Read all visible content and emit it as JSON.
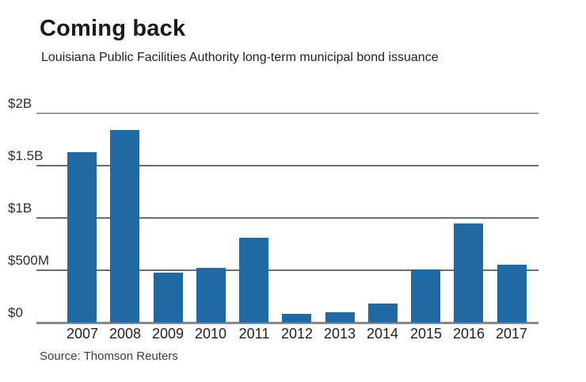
{
  "header": {
    "title": "Coming back",
    "subtitle": "Louisiana Public Facilities Authority long-term municipal bond issuance"
  },
  "footer": {
    "source": "Source: Thomson Reuters"
  },
  "colors": {
    "background": "#ffffff",
    "bar": "#1f6aa5",
    "gridline_outer": "#9a9a9a",
    "gridline_inner": "#6e6e6e",
    "baseline": "#8a8a8a",
    "title_text": "#1a1a1a",
    "axis_text": "#2e2e2e",
    "source_text": "#3d3d3d"
  },
  "chart_data": {
    "type": "bar",
    "title": "Coming back",
    "subtitle": "Louisiana Public Facilities Authority long-term municipal bond issuance",
    "source": "Source: Thomson Reuters",
    "categories": [
      "2007",
      "2008",
      "2009",
      "2010",
      "2011",
      "2012",
      "2013",
      "2014",
      "2015",
      "2016",
      "2017"
    ],
    "values": [
      1630,
      1840,
      480,
      520,
      810,
      85,
      100,
      185,
      510,
      950,
      550
    ],
    "unit": "millions of USD",
    "xlabel": "",
    "ylabel": "",
    "ylim": [
      0,
      2000
    ],
    "grid": true,
    "legend": "none",
    "yticks": [
      {
        "label": "$2B",
        "value": 2000
      },
      {
        "label": "$1.5B",
        "value": 1500
      },
      {
        "label": "$1B",
        "value": 1000
      },
      {
        "label": "$500M",
        "value": 500
      },
      {
        "label": "$0",
        "value": 0
      }
    ]
  }
}
